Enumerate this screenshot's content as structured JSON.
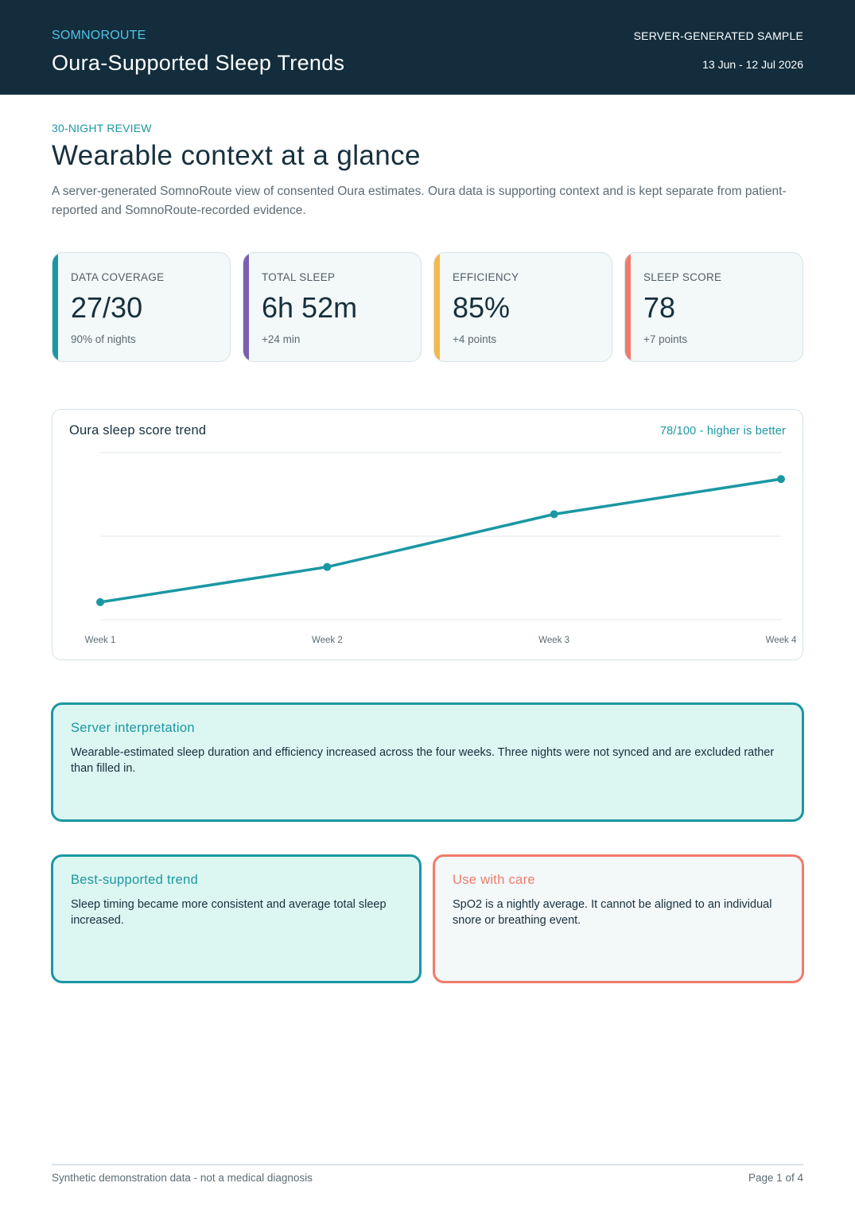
{
  "header": {
    "brand": "SOMNOROUTE",
    "title": "Oura-Supported Sleep Trends",
    "sample_label": "SERVER-GENERATED SAMPLE",
    "date_range": "13 Jun - 12 Jul 2026"
  },
  "intro": {
    "eyebrow": "30-NIGHT REVIEW",
    "title": "Wearable context at a glance",
    "description": "A server-generated SomnoRoute view of consented Oura estimates. Oura data is supporting context and is kept separate from patient-reported and SomnoRoute-recorded evidence."
  },
  "kpis": [
    {
      "label": "DATA COVERAGE",
      "value": "27/30",
      "delta": "90% of nights",
      "color": "#1b97a3"
    },
    {
      "label": "TOTAL SLEEP",
      "value": "6h 52m",
      "delta": "+24 min",
      "color": "#7a5fb0"
    },
    {
      "label": "EFFICIENCY",
      "value": "85%",
      "delta": "+4 points",
      "color": "#f4b94a"
    },
    {
      "label": "SLEEP SCORE",
      "value": "78",
      "delta": "+7 points",
      "color": "#f17b6b"
    }
  ],
  "chart": {
    "title": "Oura sleep score trend",
    "badge": "78/100 - higher is better"
  },
  "chart_data": {
    "type": "line",
    "categories": [
      "Week 1",
      "Week 2",
      "Week 3",
      "Week 4"
    ],
    "series": [
      {
        "values": [
          71,
          73,
          76,
          78
        ],
        "color": "#1b97a3"
      }
    ],
    "ylim": [
      70,
      79.5
    ],
    "grid": true,
    "xlabel": "",
    "ylabel": ""
  },
  "notes": {
    "interpretation": {
      "title": "Server interpretation",
      "body": "Wearable-estimated sleep duration and efficiency increased across the four weeks. Three nights were not synced and are excluded rather than filled in."
    },
    "best": {
      "title": "Best-supported trend",
      "body": "Sleep timing became more consistent and average total sleep increased."
    },
    "care": {
      "title": "Use with care",
      "body": "SpO2 is a nightly average. It cannot be aligned to an individual snore or breathing event."
    }
  },
  "footer": {
    "disclaimer": "Synthetic demonstration data - not a medical diagnosis",
    "page": "Page 1 of 4"
  }
}
